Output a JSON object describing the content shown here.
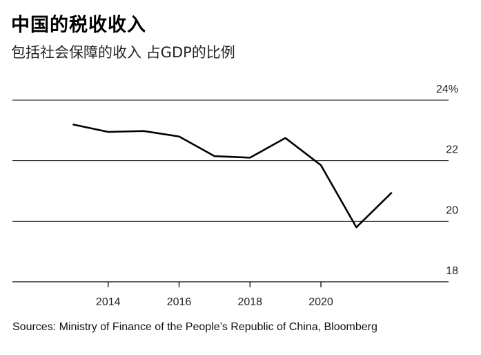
{
  "title": "中国的税收收入",
  "subtitle": "包括社会保障的收入 占GDP的比例",
  "source": "Sources: Ministry of Finance of the People’s Republic of China, Bloomberg",
  "chart_data": {
    "type": "line",
    "title": "中国的税收收入",
    "subtitle": "包括社会保障的收入 占GDP的比例",
    "x": [
      2013,
      2014,
      2015,
      2016,
      2017,
      2018,
      2019,
      2020,
      2021,
      2022
    ],
    "series": [
      {
        "values": [
          23.2,
          22.95,
          22.98,
          22.8,
          22.15,
          22.1,
          22.75,
          21.85,
          19.8,
          20.95
        ]
      }
    ],
    "xlim": [
      2011.3,
      2023.6
    ],
    "ylim": [
      18,
      24
    ],
    "x_ticks": [
      "2014",
      "2016",
      "2018",
      "2020"
    ],
    "x_tick_values": [
      2014,
      2016,
      2018,
      2020
    ],
    "y_ticks": [
      "18",
      "20",
      "22",
      "24%"
    ],
    "y_tick_values": [
      18,
      20,
      22,
      24
    ],
    "grid": "horizontal",
    "line_color": "#000000"
  }
}
